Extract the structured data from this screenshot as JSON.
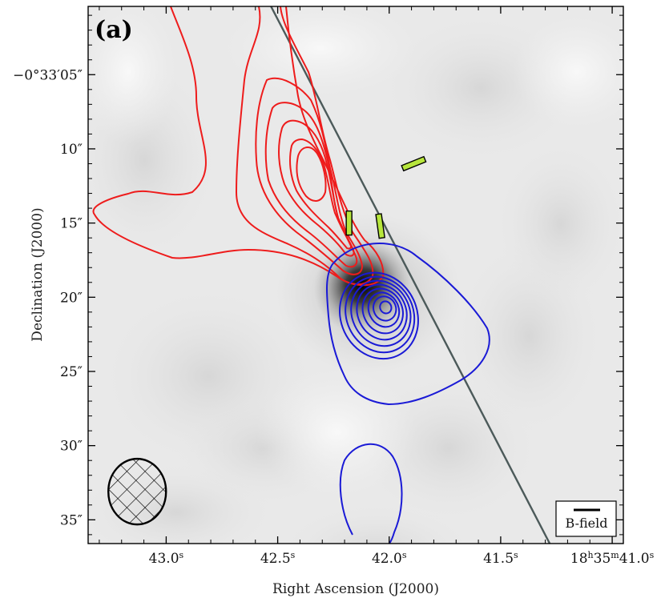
{
  "chart_data": {
    "type": "contour-image",
    "panel_label": "(a)",
    "xlabel": "Right Ascension (J2000)",
    "ylabel": "Declination (J2000)",
    "x_ticks": [
      {
        "ra_s": 43.0,
        "main": "43.0",
        "sup": "s",
        "prefix": ""
      },
      {
        "ra_s": 42.5,
        "main": "42.5",
        "sup": "s",
        "prefix": ""
      },
      {
        "ra_s": 42.0,
        "main": "42.0",
        "sup": "s",
        "prefix": ""
      },
      {
        "ra_s": 41.5,
        "main": "41.5",
        "sup": "s",
        "prefix": ""
      },
      {
        "ra_s": 41.0,
        "main": "41.0",
        "sup": "s",
        "prefix": "18h35m"
      }
    ],
    "x_ticks_text": [
      "43.0s",
      "42.5s",
      "42.0s",
      "41.5s",
      "18h35m41.0s"
    ],
    "y_ticks": [
      {
        "dec_arcsec": 5,
        "label": "−0°33′05″"
      },
      {
        "dec_arcsec": 10,
        "label": "10″"
      },
      {
        "dec_arcsec": 15,
        "label": "15″"
      },
      {
        "dec_arcsec": 20,
        "label": "20″"
      },
      {
        "dec_arcsec": 25,
        "label": "25″"
      },
      {
        "dec_arcsec": 30,
        "label": "30″"
      },
      {
        "dec_arcsec": 35,
        "label": "35″"
      }
    ],
    "x_range_ra_s": [
      43.35,
      40.95
    ],
    "y_range_dec_arcsec": [
      0.4,
      36.6
    ],
    "background": "grayscale intensity map",
    "background_peak": {
      "ra_s": 42.12,
      "dec_arcsec": 19.2
    },
    "outflow_axis": {
      "color": "#4c5a5a",
      "p1": {
        "ra_s": 42.53,
        "dec_arcsec": 0.4
      },
      "p2": {
        "ra_s": 41.28,
        "dec_arcsec": 36.6
      }
    },
    "red_lobe": {
      "color": "#ee1c1c",
      "peak": {
        "ra_s": 42.34,
        "dec_arcsec": 11.0
      }
    },
    "blue_lobe": {
      "color": "#1a1ad6",
      "peak": {
        "ra_s": 42.01,
        "dec_arcsec": 20.6
      }
    },
    "bfield_vectors": {
      "color": "#b7e63c",
      "items": [
        {
          "ra_s": 42.18,
          "dec_arcsec": 15.0,
          "angle_deg": 0
        },
        {
          "ra_s": 42.04,
          "dec_arcsec": 15.2,
          "angle_deg": -8
        },
        {
          "ra_s": 41.89,
          "dec_arcsec": 11.0,
          "angle_deg": 68
        }
      ]
    },
    "beam": {
      "center": {
        "ra_s": 43.13,
        "dec_arcsec": 33.1
      }
    },
    "legend": {
      "label": "B-field",
      "position": "bottom-right"
    }
  }
}
